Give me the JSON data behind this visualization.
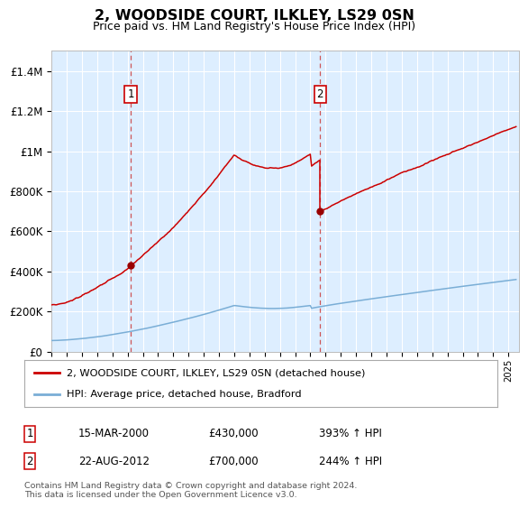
{
  "title": "2, WOODSIDE COURT, ILKLEY, LS29 0SN",
  "subtitle": "Price paid vs. HM Land Registry's House Price Index (HPI)",
  "ylim": [
    0,
    1500000
  ],
  "yticks": [
    0,
    200000,
    400000,
    600000,
    800000,
    1000000,
    1200000,
    1400000
  ],
  "ytick_labels": [
    "£0",
    "£200K",
    "£400K",
    "£600K",
    "£800K",
    "£1M",
    "£1.2M",
    "£1.4M"
  ],
  "xlim_start": 1995.0,
  "xlim_end": 2025.7,
  "sale1_date": 2000.21,
  "sale1_price": 430000,
  "sale2_date": 2012.64,
  "sale2_price": 700000,
  "hpi_line_color": "#7aaed6",
  "price_line_color": "#cc0000",
  "sale_dot_color": "#990000",
  "plot_bg": "#ddeeff",
  "legend_label_price": "2, WOODSIDE COURT, ILKLEY, LS29 0SN (detached house)",
  "legend_label_hpi": "HPI: Average price, detached house, Bradford",
  "sale1_display": "15-MAR-2000",
  "sale1_amount": "£430,000",
  "sale1_hpi": "393% ↑ HPI",
  "sale2_display": "22-AUG-2012",
  "sale2_amount": "£700,000",
  "sale2_hpi": "244% ↑ HPI",
  "footer": "Contains HM Land Registry data © Crown copyright and database right 2024.\nThis data is licensed under the Open Government Licence v3.0."
}
